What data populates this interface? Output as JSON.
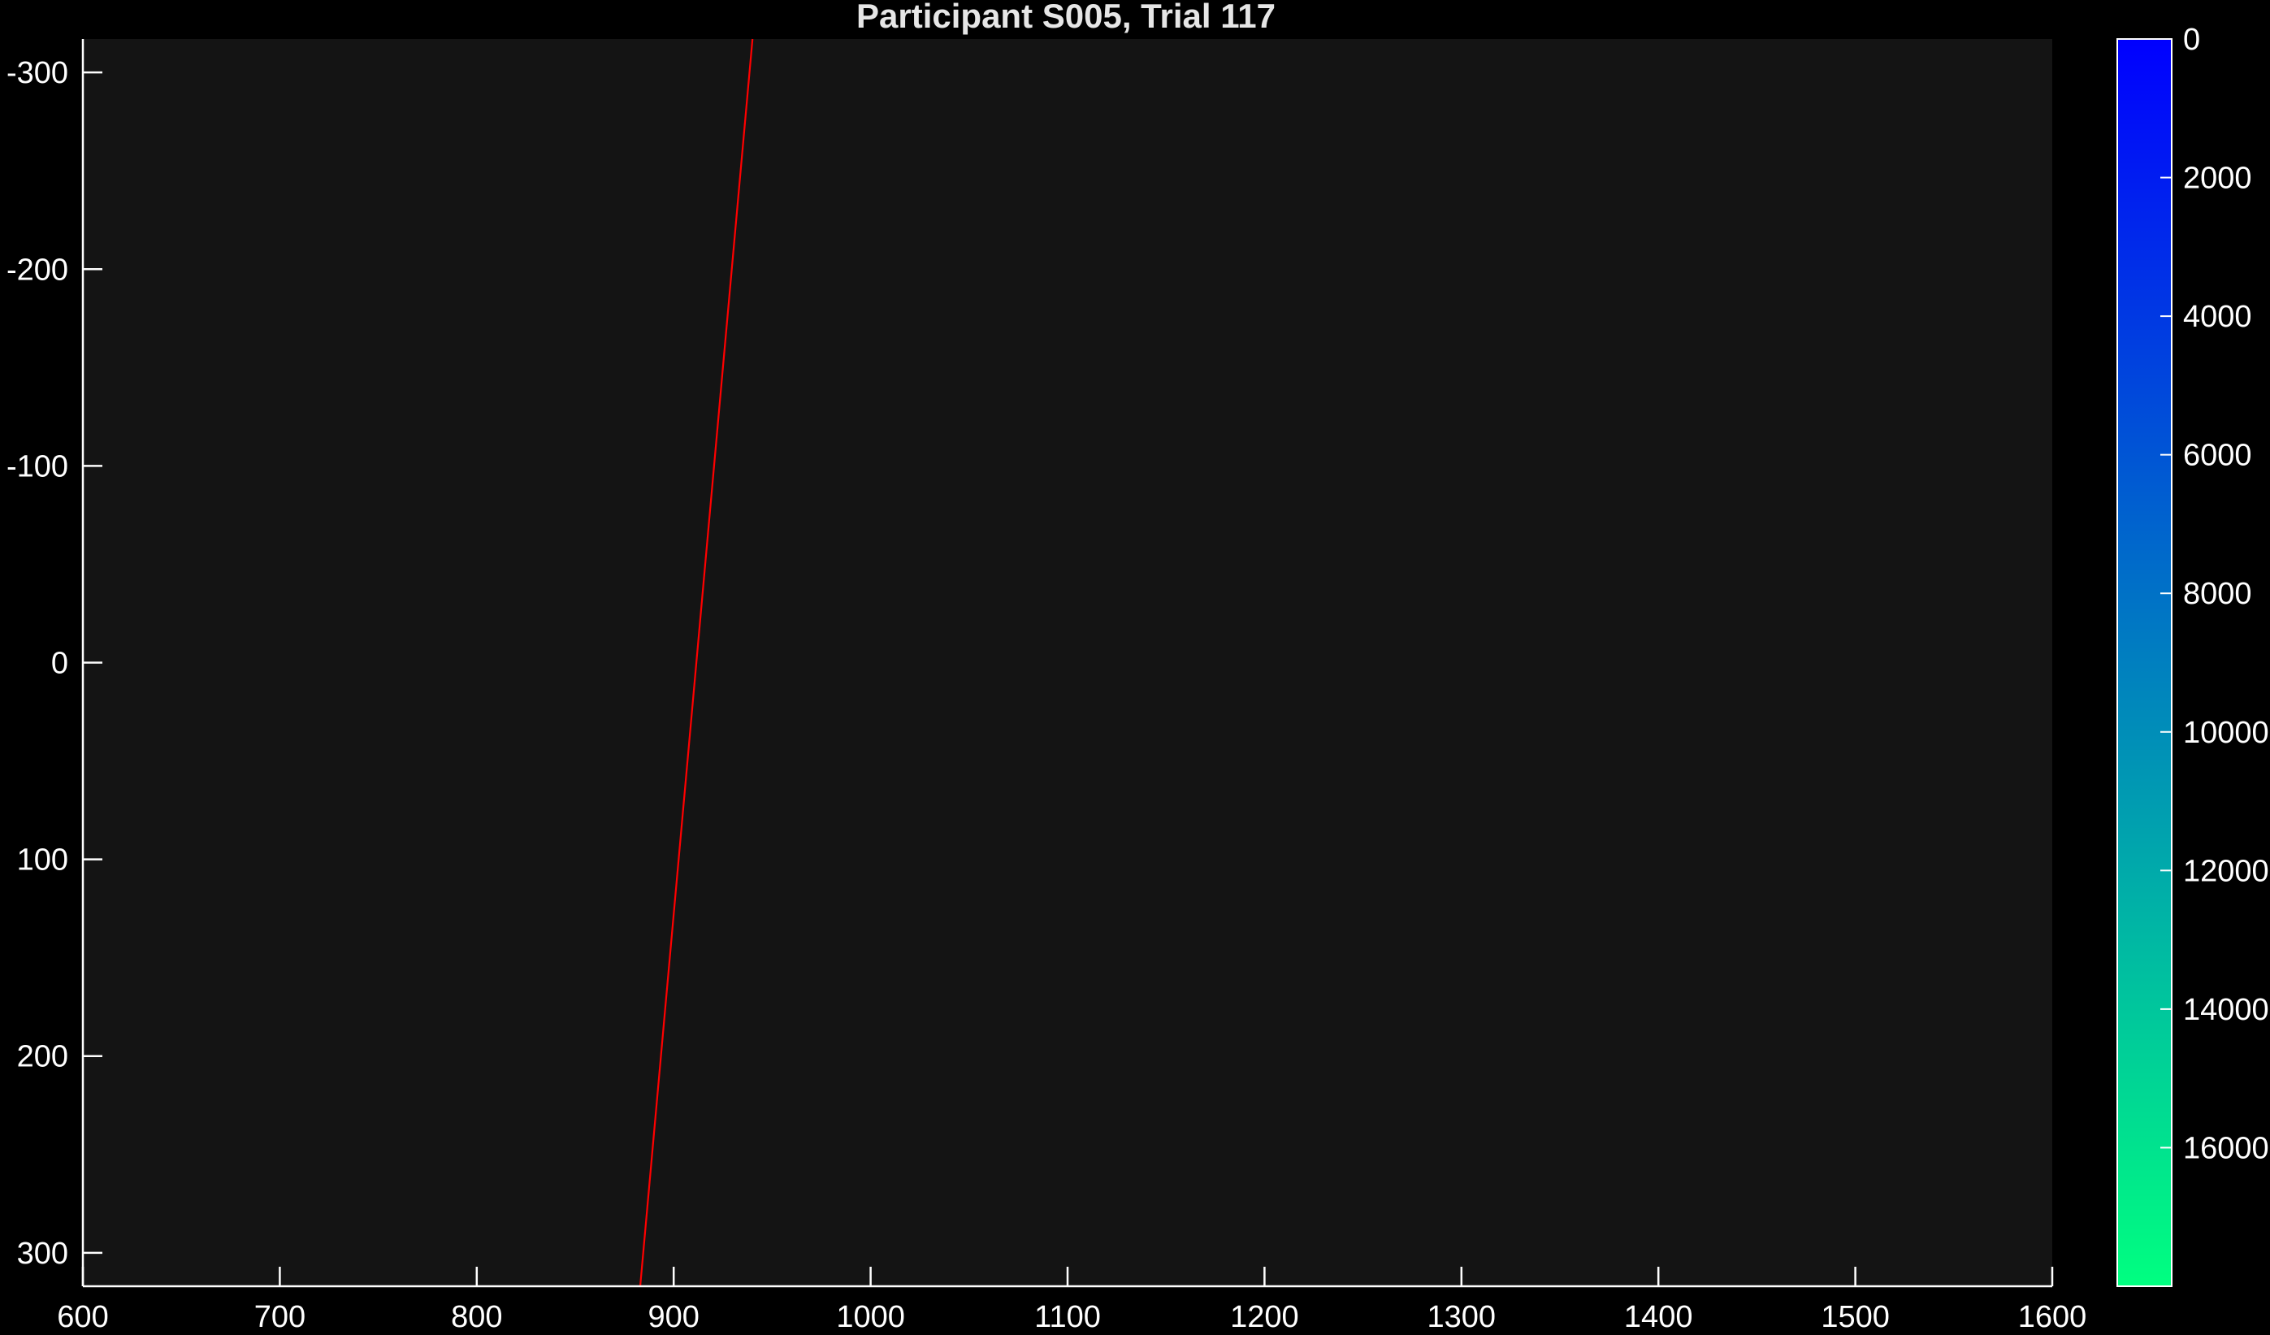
{
  "chart_data": {
    "type": "line",
    "title": "Participant S005, Trial 117",
    "xlabel": "",
    "ylabel": "",
    "xlim": [
      600,
      1600
    ],
    "ylim": [
      -317,
      317
    ],
    "y_reversed": true,
    "x_ticks": [
      "600",
      "700",
      "800",
      "900",
      "1000",
      "1100",
      "1200",
      "1300",
      "1400",
      "1500",
      "1600"
    ],
    "y_ticks": [
      "-300",
      "-200",
      "-100",
      "0",
      "100",
      "200",
      "300"
    ],
    "grid": false,
    "series": [
      {
        "color": "#ff0000",
        "x": [
          940,
          883
        ],
        "y": [
          -317,
          317
        ]
      }
    ],
    "colorbar": {
      "range": [
        0,
        18000
      ],
      "reversed": true,
      "ticks": [
        "0",
        "2000",
        "4000",
        "6000",
        "8000",
        "10000",
        "12000",
        "14000",
        "16000"
      ],
      "color_top": "#0000ff",
      "color_bottom": "#00ff80"
    },
    "background": "#000000",
    "axes_background": "#141414",
    "axis_color": "#ffffff"
  }
}
